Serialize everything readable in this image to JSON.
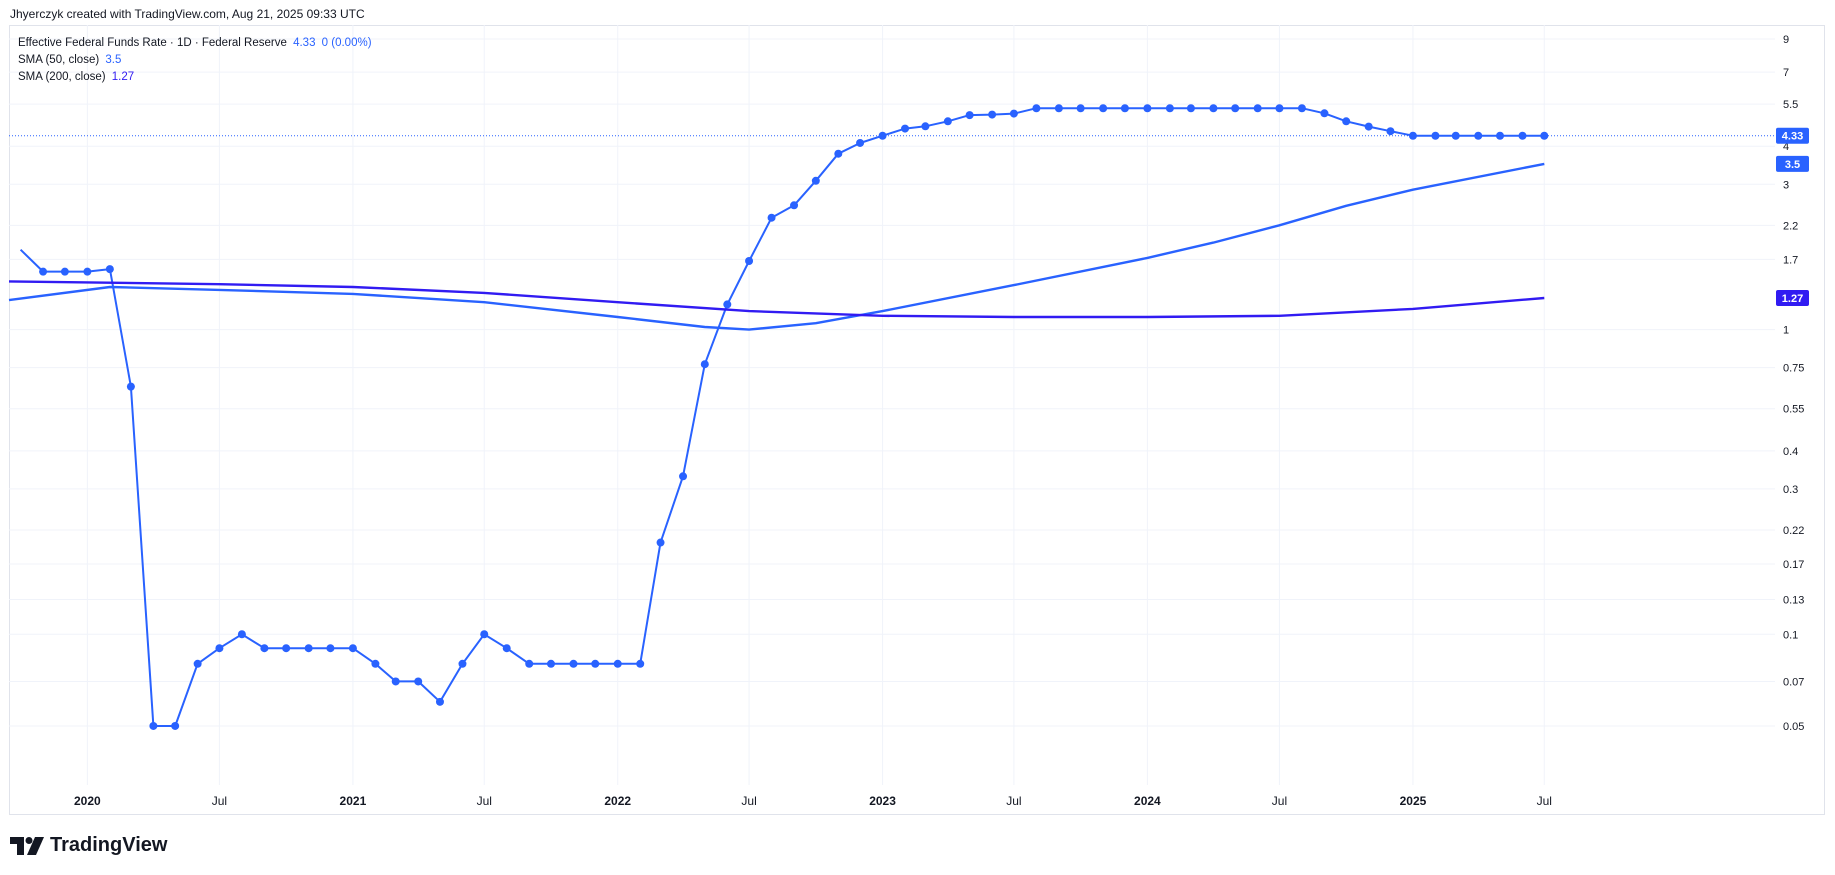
{
  "caption": "Jhyerczyk created with TradingView.com, Aug 21, 2025 09:33 UTC",
  "legend": {
    "symbol": "Effective Federal Funds Rate · 1D · Federal Reserve",
    "last": "4.33",
    "change": "0 (0.00%)",
    "sma50_label": "SMA (50, close)",
    "sma50_value": "3.5",
    "sma200_label": "SMA (200, close)",
    "sma200_value": "1.27"
  },
  "brand": "TradingView",
  "colors": {
    "price": "#2962ff",
    "sma50": "#2962ff",
    "sma200": "#311bf2",
    "grid": "#f0f3fa",
    "axis_text": "#131722"
  },
  "chart_data": {
    "type": "line",
    "scale": "log",
    "grid": true,
    "x_ticks": [
      "2020",
      "Jul",
      "2021",
      "Jul",
      "2022",
      "Jul",
      "2023",
      "Jul",
      "2024",
      "Jul",
      "2025",
      "Jul"
    ],
    "x_tick_dates": [
      "2020-01",
      "2020-07",
      "2021-01",
      "2021-07",
      "2022-01",
      "2022-07",
      "2023-01",
      "2023-07",
      "2024-01",
      "2024-07",
      "2025-01",
      "2025-07"
    ],
    "y_ticks": [
      "9",
      "7",
      "5.5",
      "4",
      "3",
      "2.2",
      "1.7",
      "1",
      "0.75",
      "0.55",
      "0.4",
      "0.3",
      "0.22",
      "0.17",
      "0.13",
      "0.1",
      "0.07",
      "0.05"
    ],
    "xlim": [
      "2019-09-15",
      "2026-05-15"
    ],
    "ylim": [
      0.032,
      10
    ],
    "series": [
      {
        "name": "Effective Federal Funds Rate",
        "role": "price",
        "x": [
          "2019-10-01",
          "2019-11-01",
          "2019-12-01",
          "2020-01-01",
          "2020-02-01",
          "2020-03-01",
          "2020-04-01",
          "2020-05-01",
          "2020-06-01",
          "2020-07-01",
          "2020-08-01",
          "2020-09-01",
          "2020-10-01",
          "2020-11-01",
          "2020-12-01",
          "2021-01-01",
          "2021-02-01",
          "2021-03-01",
          "2021-04-01",
          "2021-05-01",
          "2021-06-01",
          "2021-07-01",
          "2021-08-01",
          "2021-09-01",
          "2021-10-01",
          "2021-11-01",
          "2021-12-01",
          "2022-01-01",
          "2022-02-01",
          "2022-03-01",
          "2022-04-01",
          "2022-05-01",
          "2022-06-01",
          "2022-07-01",
          "2022-08-01",
          "2022-09-01",
          "2022-10-01",
          "2022-11-01",
          "2022-12-01",
          "2023-01-01",
          "2023-02-01",
          "2023-03-01",
          "2023-04-01",
          "2023-05-01",
          "2023-06-01",
          "2023-07-01",
          "2023-08-01",
          "2023-09-01",
          "2023-10-01",
          "2023-11-01",
          "2023-12-01",
          "2024-01-01",
          "2024-02-01",
          "2024-03-01",
          "2024-04-01",
          "2024-05-01",
          "2024-06-01",
          "2024-07-01",
          "2024-08-01",
          "2024-09-01",
          "2024-10-01",
          "2024-11-01",
          "2024-12-01",
          "2025-01-01",
          "2025-02-01",
          "2025-03-01",
          "2025-04-01",
          "2025-05-01",
          "2025-06-01",
          "2025-07-01"
        ],
        "values": [
          1.83,
          1.55,
          1.55,
          1.55,
          1.58,
          0.65,
          0.05,
          0.05,
          0.08,
          0.09,
          0.1,
          0.09,
          0.09,
          0.09,
          0.09,
          0.09,
          0.08,
          0.07,
          0.07,
          0.06,
          0.08,
          0.1,
          0.09,
          0.08,
          0.08,
          0.08,
          0.08,
          0.08,
          0.08,
          0.2,
          0.33,
          0.77,
          1.21,
          1.68,
          2.33,
          2.56,
          3.08,
          3.78,
          4.1,
          4.33,
          4.57,
          4.65,
          4.83,
          5.06,
          5.08,
          5.12,
          5.33,
          5.33,
          5.33,
          5.33,
          5.33,
          5.33,
          5.33,
          5.33,
          5.33,
          5.33,
          5.33,
          5.33,
          5.33,
          5.13,
          4.83,
          4.64,
          4.48,
          4.33,
          4.33,
          4.33,
          4.33,
          4.33,
          4.33,
          4.33
        ]
      },
      {
        "name": "SMA (50, close)",
        "role": "sma50",
        "x": [
          "2019-09-15",
          "2020-02-01",
          "2020-07-01",
          "2021-01-01",
          "2021-07-01",
          "2022-01-01",
          "2022-05-01",
          "2022-07-01",
          "2022-10-01",
          "2023-01-01",
          "2023-07-01",
          "2024-01-01",
          "2024-04-01",
          "2024-07-01",
          "2024-10-01",
          "2025-01-01",
          "2025-07-01"
        ],
        "values": [
          1.25,
          1.38,
          1.35,
          1.31,
          1.23,
          1.1,
          1.02,
          1.0,
          1.05,
          1.15,
          1.4,
          1.72,
          1.93,
          2.2,
          2.55,
          2.88,
          3.5
        ]
      },
      {
        "name": "SMA (200, close)",
        "role": "sma200",
        "x": [
          "2019-09-15",
          "2020-07-01",
          "2021-01-01",
          "2021-07-01",
          "2022-01-01",
          "2022-07-01",
          "2023-01-01",
          "2023-07-01",
          "2024-01-01",
          "2024-07-01",
          "2025-01-01",
          "2025-07-01"
        ],
        "values": [
          1.44,
          1.41,
          1.38,
          1.32,
          1.23,
          1.15,
          1.11,
          1.1,
          1.1,
          1.11,
          1.17,
          1.27
        ]
      }
    ],
    "price_labels": [
      {
        "text": "4.33",
        "value": 4.33,
        "role": "price"
      },
      {
        "text": "3.5",
        "value": 3.5,
        "role": "sma50"
      },
      {
        "text": "1.27",
        "value": 1.27,
        "role": "sma200"
      }
    ]
  }
}
